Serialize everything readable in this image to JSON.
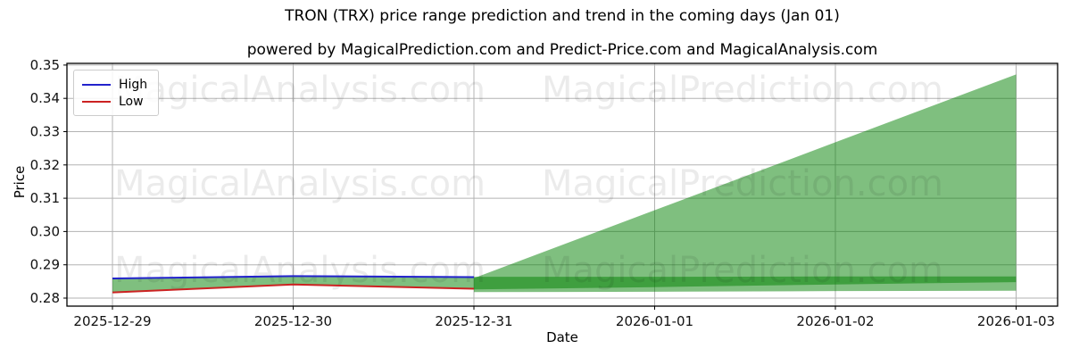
{
  "chart_data": {
    "type": "line",
    "title": "TRON (TRX) price range prediction and trend in the coming days (Jan 01)",
    "subtitle": "powered by MagicalPrediction.com and Predict-Price.com and MagicalAnalysis.com",
    "xlabel": "Date",
    "ylabel": "Price",
    "categories": [
      "2025-12-29",
      "2025-12-30",
      "2025-12-31",
      "2026-01-01",
      "2026-01-02",
      "2026-01-03"
    ],
    "yticks": [
      0.28,
      0.29,
      0.3,
      0.31,
      0.32,
      0.33,
      0.34,
      0.35
    ],
    "ylim": [
      0.2776,
      0.3505
    ],
    "grid": true,
    "legend_position": "upper left",
    "series": [
      {
        "name": "High",
        "color": "#2222cc",
        "values": [
          0.2859,
          0.2866,
          0.2863
        ]
      },
      {
        "name": "Low",
        "color": "#cc2222",
        "values": [
          0.2817,
          0.2841,
          0.2828
        ]
      }
    ],
    "forecast": {
      "start_category_index": 2,
      "fan_top": [
        0.286,
        0.3064,
        0.3268,
        0.3472
      ],
      "fan_bottom": [
        0.2826,
        0.2833,
        0.2841,
        0.2848
      ],
      "band_top": [
        0.2864,
        0.2864,
        0.2865,
        0.2865
      ],
      "band_bottom": [
        0.2818,
        0.2819,
        0.2821,
        0.2822
      ],
      "fill_color": "#008000",
      "fill_opacity": 0.5
    }
  },
  "legend": {
    "items": [
      {
        "label": "High",
        "color": "#2222cc"
      },
      {
        "label": "Low",
        "color": "#cc2222"
      }
    ]
  },
  "watermark": {
    "texts": [
      "MagicalAnalysis.com",
      "MagicalPrediction.com"
    ]
  }
}
